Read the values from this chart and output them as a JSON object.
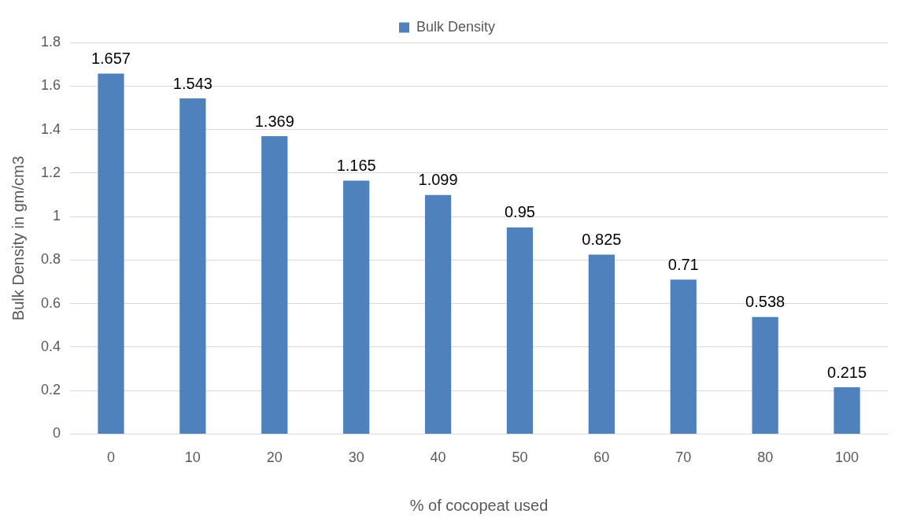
{
  "chart_data": {
    "type": "bar",
    "xlabel": "% of cocopeat used",
    "ylabel": "Bulk Density in gm/cm3",
    "categories": [
      "0",
      "10",
      "20",
      "30",
      "40",
      "50",
      "60",
      "70",
      "80",
      "100"
    ],
    "series": [
      {
        "name": "Bulk Density",
        "color": "#4f81bd",
        "values": [
          1.657,
          1.543,
          1.369,
          1.165,
          1.099,
          0.95,
          0.825,
          0.71,
          0.538,
          0.215
        ]
      }
    ],
    "ylim": [
      0,
      1.8
    ],
    "yticks": [
      0,
      0.2,
      0.4,
      0.6,
      0.8,
      1,
      1.2,
      1.4,
      1.6,
      1.8
    ],
    "grid": "y",
    "legend": "top",
    "data_labels": true
  }
}
